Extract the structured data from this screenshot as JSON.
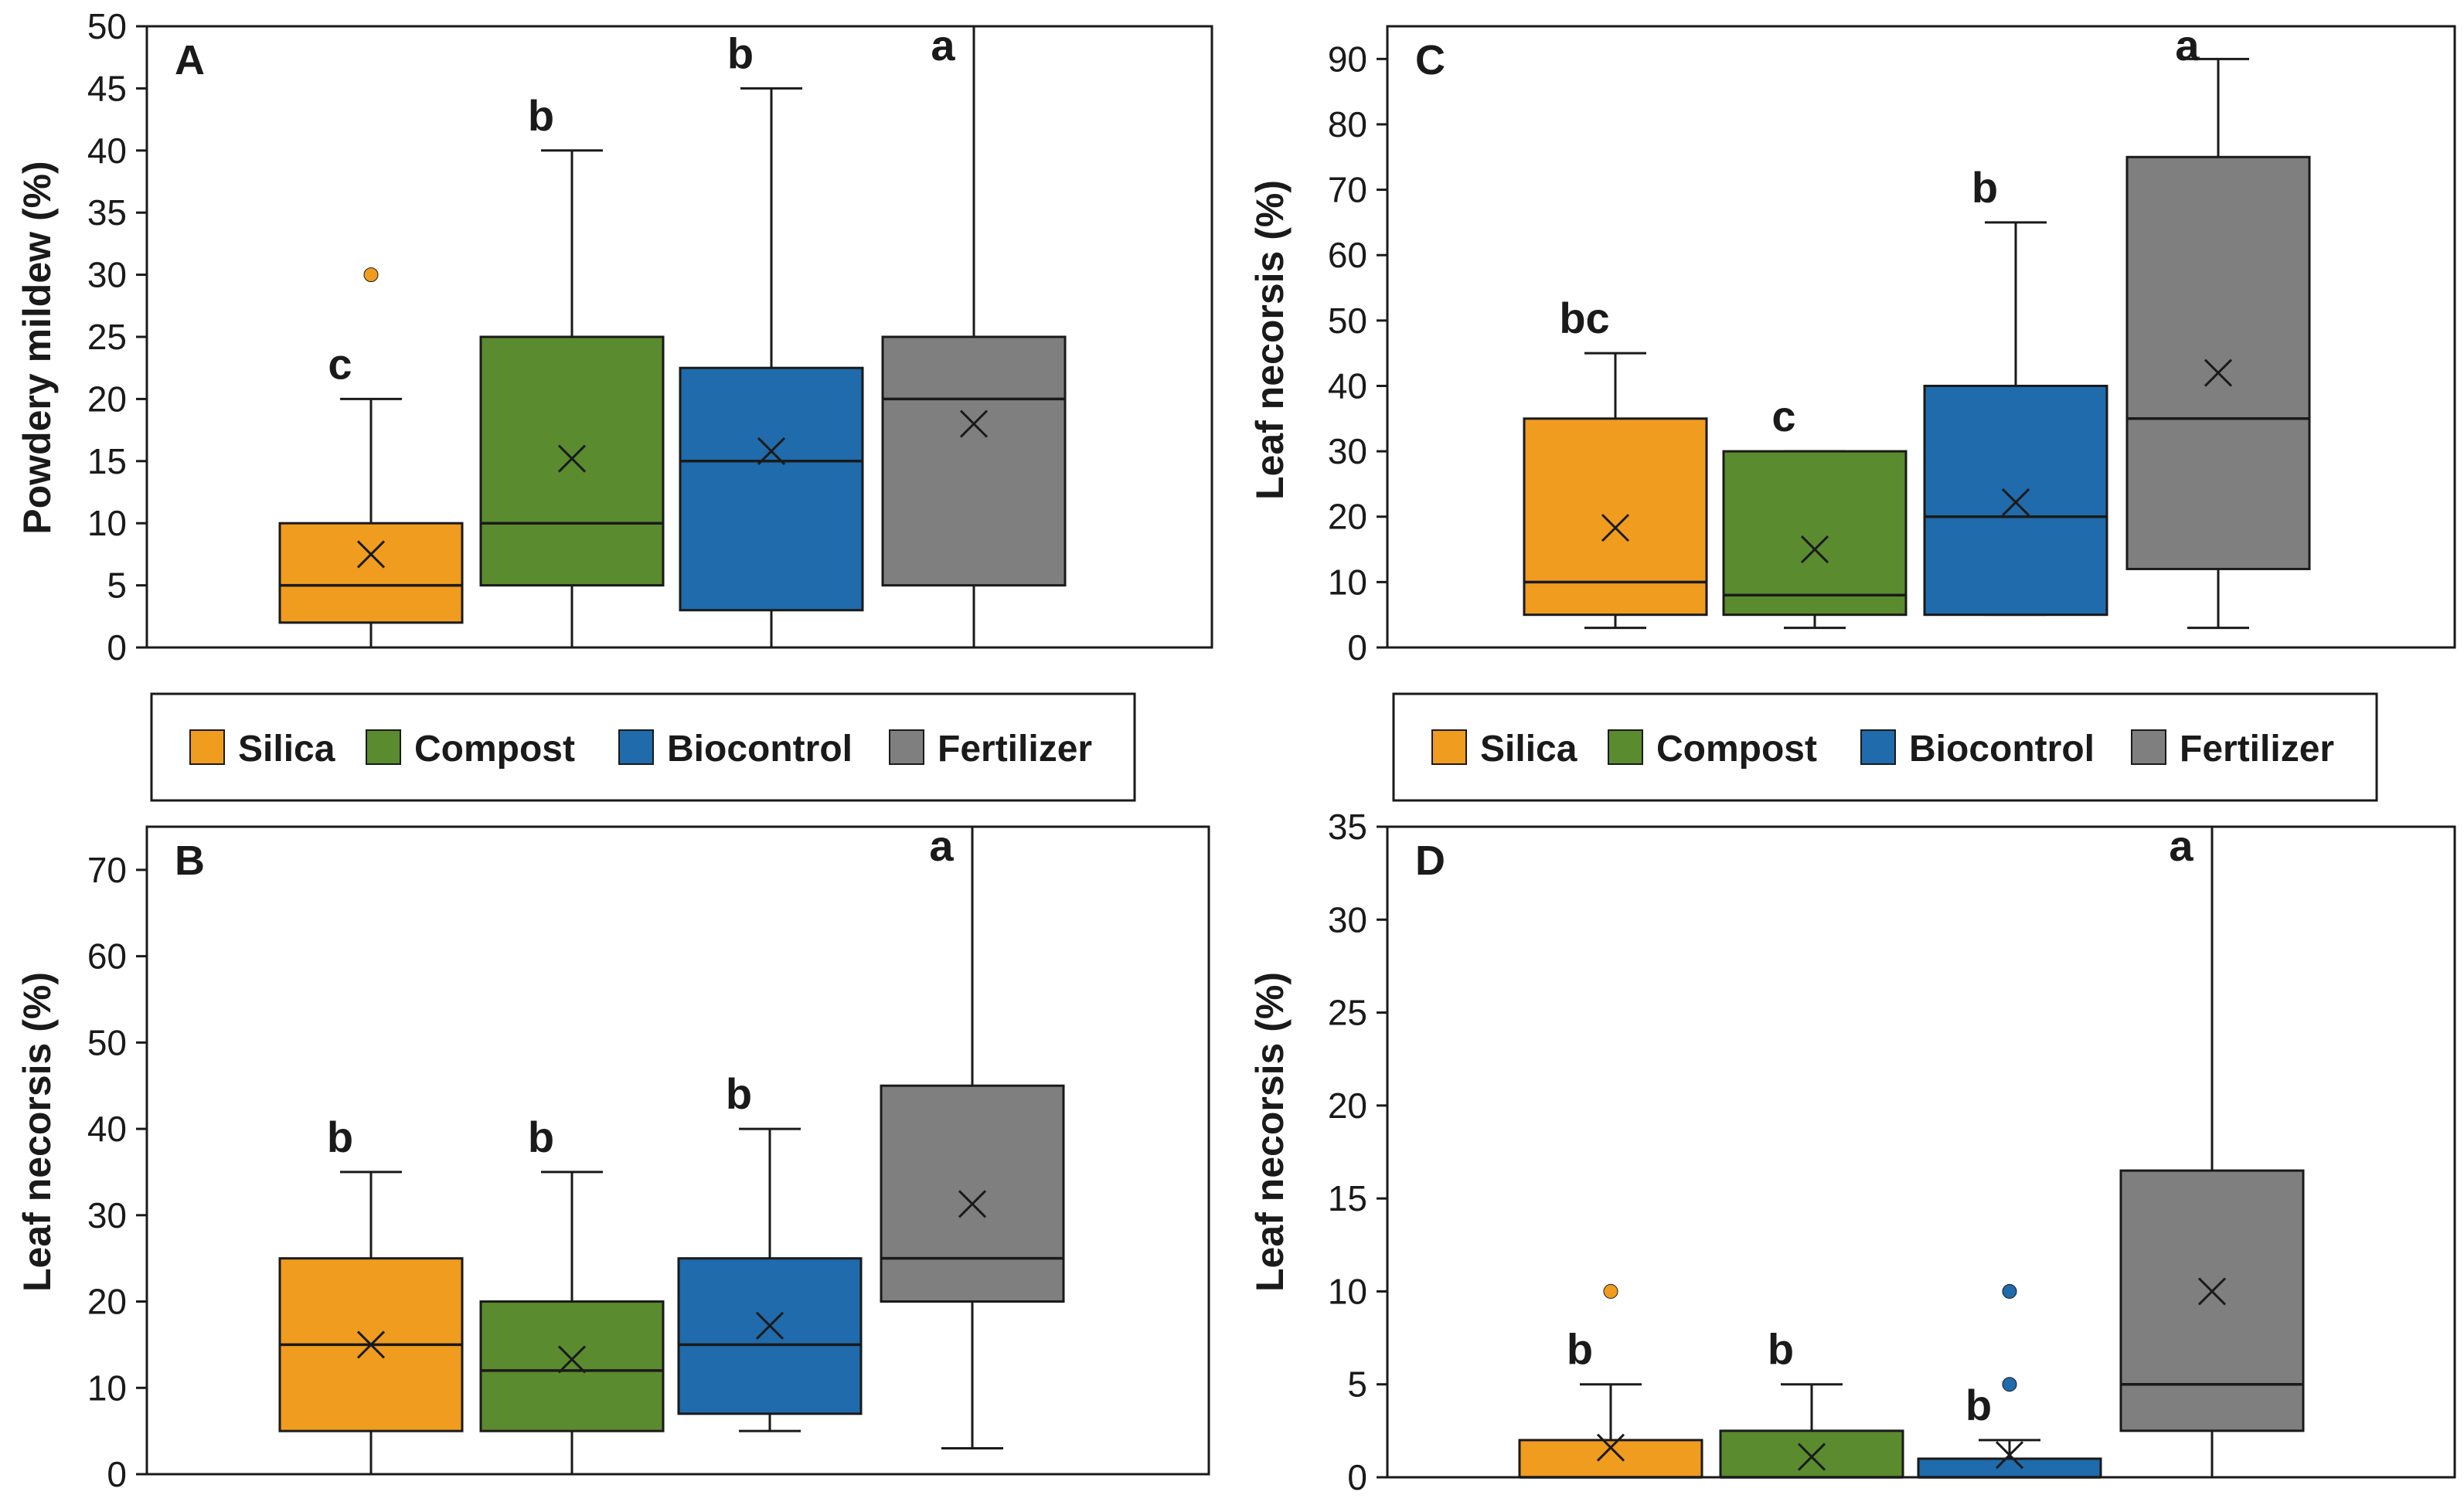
{
  "chart_data": [
    {
      "type": "box",
      "panel_label": "A",
      "ylabel": "Powdery mildew (%)",
      "ylim": [
        0,
        50
      ],
      "yticks": [
        0,
        5,
        10,
        15,
        20,
        25,
        30,
        35,
        40,
        45,
        50
      ],
      "categories": [
        "Silica",
        "Compost",
        "Biocontrol",
        "Fertilizer"
      ],
      "boxes": [
        {
          "group": "Silica",
          "min": 0,
          "q1": 2,
          "median": 5,
          "q3": 10,
          "max": 20,
          "mean": 7.5,
          "outliers": [
            30
          ],
          "letter": "c"
        },
        {
          "group": "Compost",
          "min": 0,
          "q1": 5,
          "median": 10,
          "q3": 25,
          "max": 40,
          "mean": 15.2,
          "outliers": [],
          "letter": "b"
        },
        {
          "group": "Biocontrol",
          "min": 0,
          "q1": 3,
          "median": 15,
          "q3": 22.5,
          "max": 45,
          "mean": 15.8,
          "outliers": [],
          "letter": "b"
        },
        {
          "group": "Fertilizer",
          "min": 0,
          "q1": 5,
          "median": 20,
          "q3": 25,
          "max": 50,
          "mean": 18,
          "outliers": [],
          "letter": "a"
        }
      ]
    },
    {
      "type": "box",
      "panel_label": "B",
      "ylabel": "Leaf necorsis (%)",
      "ylim": [
        0,
        75
      ],
      "yticks": [
        0,
        10,
        20,
        30,
        40,
        50,
        60,
        70
      ],
      "categories": [
        "Silica",
        "Compost",
        "Biocontrol",
        "Fertilizer"
      ],
      "boxes": [
        {
          "group": "Silica",
          "min": 0,
          "q1": 5,
          "median": 15,
          "q3": 25,
          "max": 35,
          "mean": 15,
          "outliers": [],
          "letter": "b"
        },
        {
          "group": "Compost",
          "min": 0,
          "q1": 5,
          "median": 12,
          "q3": 20,
          "max": 35,
          "mean": 13.3,
          "outliers": [],
          "letter": "b"
        },
        {
          "group": "Biocontrol",
          "min": 5,
          "q1": 7,
          "median": 15,
          "q3": 25,
          "max": 40,
          "mean": 17.2,
          "outliers": [],
          "letter": "b"
        },
        {
          "group": "Fertilizer",
          "min": 3,
          "q1": 20,
          "median": 25,
          "q3": 45,
          "max": 75,
          "mean": 31.3,
          "outliers": [],
          "letter": "a"
        }
      ]
    },
    {
      "type": "box",
      "panel_label": "C",
      "ylabel": "Leaf necorsis (%)",
      "ylim": [
        0,
        95
      ],
      "yticks": [
        0,
        10,
        20,
        30,
        40,
        50,
        60,
        70,
        80,
        90
      ],
      "categories": [
        "Silica",
        "Compost",
        "Biocontrol",
        "Fertilizer"
      ],
      "boxes": [
        {
          "group": "Silica",
          "min": 3,
          "q1": 5,
          "median": 10,
          "q3": 35,
          "max": 45,
          "mean": 18.3,
          "outliers": [],
          "letter": "bc"
        },
        {
          "group": "Compost",
          "min": 3,
          "q1": 5,
          "median": 8,
          "q3": 30,
          "max": 30,
          "mean": 15,
          "outliers": [],
          "letter": "c"
        },
        {
          "group": "Biocontrol",
          "min": 5,
          "q1": 5,
          "median": 20,
          "q3": 40,
          "max": 65,
          "mean": 22.2,
          "outliers": [],
          "letter": "b"
        },
        {
          "group": "Fertilizer",
          "min": 3,
          "q1": 12,
          "median": 35,
          "q3": 75,
          "max": 90,
          "mean": 42,
          "outliers": [],
          "letter": "a"
        }
      ]
    },
    {
      "type": "box",
      "panel_label": "D",
      "ylabel": "Leaf necorsis (%)",
      "ylim": [
        0,
        35
      ],
      "yticks": [
        0,
        5,
        10,
        15,
        20,
        25,
        30,
        35
      ],
      "categories": [
        "Silica",
        "Compost",
        "Biocontrol",
        "Fertilizer"
      ],
      "boxes": [
        {
          "group": "Silica",
          "min": 0,
          "q1": 0,
          "median": 0,
          "q3": 2,
          "max": 5,
          "mean": 1.6,
          "outliers": [
            10
          ],
          "letter": "b"
        },
        {
          "group": "Compost",
          "min": 0,
          "q1": 0,
          "median": 0,
          "q3": 2.5,
          "max": 5,
          "mean": 1.1,
          "outliers": [],
          "letter": "b"
        },
        {
          "group": "Biocontrol",
          "min": 0,
          "q1": 0,
          "median": 0,
          "q3": 1,
          "max": 2,
          "mean": 1.2,
          "outliers": [
            5,
            10
          ],
          "letter": "b"
        },
        {
          "group": "Fertilizer",
          "min": 0,
          "q1": 2.5,
          "median": 5,
          "q3": 16.5,
          "max": 35,
          "mean": 10,
          "outliers": [],
          "letter": "a"
        }
      ]
    }
  ],
  "legend": {
    "entries": [
      "Silica",
      "Compost",
      "Biocontrol",
      "Fertilizer"
    ]
  },
  "colors": {
    "Silica": "#f09c1f",
    "Compost": "#5a8b2e",
    "Biocontrol": "#1f6bab",
    "Fertilizer": "#7f7f7f",
    "outline": "#1a1a1a",
    "whisker": "#1a1a1a"
  },
  "markers": {
    "mean": "×",
    "outlier": "●"
  }
}
